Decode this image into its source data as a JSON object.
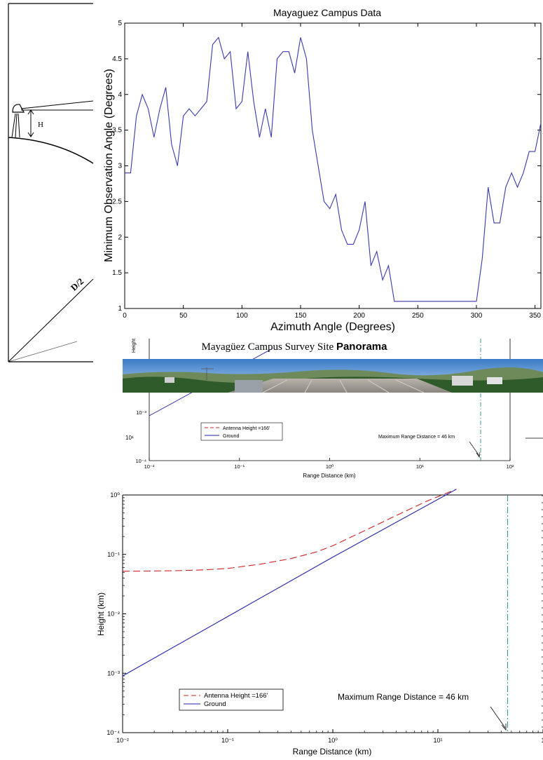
{
  "diagram": {
    "h_label": "H",
    "d2_label": "D/2"
  },
  "panorama": {
    "title_prefix": "Mayagüez Campus Survey Site",
    "title_bold": "Panorama"
  },
  "chart_data": [
    {
      "type": "line",
      "title": "Mayaguez Campus Data",
      "xlabel": "Azimuth Angle (Degrees)",
      "ylabel": "Minimum Observation Angle (Degrees)",
      "xlim": [
        0,
        355
      ],
      "ylim": [
        1,
        5
      ],
      "xticks": [
        "0",
        "50",
        "100",
        "150",
        "200",
        "250",
        "300",
        "350"
      ],
      "yticks": [
        "1",
        "1.5",
        "2",
        "2.5",
        "3",
        "3.5",
        "4",
        "4.5",
        "5"
      ],
      "color": "#3a3aaa",
      "x": [
        0,
        5,
        10,
        15,
        20,
        25,
        30,
        35,
        40,
        45,
        50,
        55,
        60,
        65,
        70,
        75,
        80,
        85,
        90,
        95,
        100,
        105,
        110,
        115,
        120,
        125,
        130,
        135,
        140,
        145,
        150,
        155,
        160,
        165,
        170,
        175,
        180,
        185,
        190,
        195,
        200,
        205,
        210,
        215,
        220,
        225,
        230,
        235,
        240,
        245,
        250,
        255,
        260,
        265,
        270,
        275,
        280,
        285,
        290,
        295,
        300,
        305,
        310,
        315,
        320,
        325,
        330,
        335,
        340,
        345,
        350,
        355
      ],
      "y": [
        2.9,
        2.9,
        3.7,
        4.0,
        3.8,
        3.4,
        3.8,
        4.1,
        3.3,
        3.0,
        3.7,
        3.8,
        3.7,
        3.8,
        3.9,
        4.7,
        4.8,
        4.5,
        4.6,
        3.8,
        3.9,
        4.6,
        3.9,
        3.4,
        3.8,
        3.4,
        4.5,
        4.6,
        4.6,
        4.3,
        4.8,
        4.5,
        3.5,
        3.0,
        2.5,
        2.4,
        2.6,
        2.1,
        1.9,
        1.9,
        2.1,
        2.5,
        1.6,
        1.8,
        1.4,
        1.6,
        1.1,
        1.1,
        1.1,
        1.1,
        1.1,
        1.1,
        1.1,
        1.1,
        1.1,
        1.1,
        1.1,
        1.1,
        1.1,
        1.1,
        1.1,
        1.7,
        2.7,
        2.2,
        2.2,
        2.7,
        2.9,
        2.7,
        2.9,
        3.2,
        3.2,
        3.6
      ]
    },
    {
      "type": "line",
      "scale": "log-log",
      "ylabel": "Height",
      "xlabel": "Range Distance (km)",
      "xticks": [
        "10⁻²",
        "10⁻¹",
        "10⁰",
        "10¹",
        "10²"
      ],
      "yticks": [
        "10⁻³",
        "10⁻⁴"
      ],
      "legend": [
        "Antenna Height =166'",
        "Ground"
      ],
      "annotation": "Maximum Range Distance = 46 km",
      "side_label": "10¹",
      "max_range_km": 46
    },
    {
      "type": "line",
      "scale": "log-log",
      "xlabel": "Range Distance (km)",
      "ylabel": "Height (km)",
      "xticks": [
        "10⁻²",
        "10⁻¹",
        "10⁰",
        "10¹",
        "1"
      ],
      "yticks": [
        "10⁰",
        "10⁻¹",
        "10⁻²",
        "10⁻³",
        "10⁻⁴"
      ],
      "legend_placement": "bottom-left",
      "max_range_km": 46,
      "annotation": "Maximum Range Distance = 46 km",
      "series": [
        {
          "name": "Antenna Height =166'",
          "color": "#cc2222",
          "style": "dashed",
          "x": [
            0.01,
            0.03,
            0.06,
            0.1,
            0.2,
            0.4,
            0.7,
            1,
            2,
            4,
            8,
            15
          ],
          "y": [
            0.052,
            0.053,
            0.055,
            0.058,
            0.068,
            0.085,
            0.11,
            0.14,
            0.25,
            0.45,
            0.8,
            1.25
          ]
        },
        {
          "name": "Ground",
          "color": "#2222aa",
          "style": "solid",
          "x": [
            0.01,
            0.1,
            1,
            15
          ],
          "y": [
            0.0009,
            0.009,
            0.09,
            1.25
          ]
        }
      ],
      "legend": [
        "Antenna Height =166'",
        "Ground"
      ]
    }
  ]
}
